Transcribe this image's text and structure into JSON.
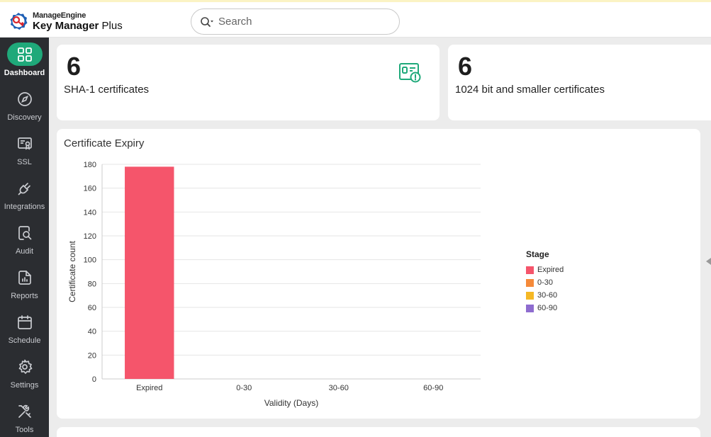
{
  "header": {
    "company": "ManageEngine",
    "product_bold": "Key Manager",
    "product_rest": " Plus",
    "search_placeholder": "Search"
  },
  "sidebar": {
    "items": [
      {
        "label": "Dashboard",
        "icon": "grid-icon",
        "active": true
      },
      {
        "label": "Discovery",
        "icon": "compass-icon"
      },
      {
        "label": "SSL",
        "icon": "certificate-icon"
      },
      {
        "label": "Integrations",
        "icon": "plug-icon"
      },
      {
        "label": "Audit",
        "icon": "audit-icon"
      },
      {
        "label": "Reports",
        "icon": "report-icon"
      },
      {
        "label": "Schedule",
        "icon": "calendar-icon"
      },
      {
        "label": "Settings",
        "icon": "gear-icon"
      },
      {
        "label": "Tools",
        "icon": "tools-icon"
      }
    ]
  },
  "stats": [
    {
      "value": "6",
      "label": "SHA-1 certificates",
      "icon": "certificate-warning-icon"
    },
    {
      "value": "6",
      "label": "1024 bit and smaller certificates"
    }
  ],
  "colors": {
    "accent": "#1fa97a",
    "expired": "#f5556b",
    "d0_30": "#f58a3a",
    "d30_60": "#f5b825",
    "d60_90": "#8e6ccf"
  },
  "expiry_card": {
    "title": "Certificate Expiry"
  },
  "chart_data": {
    "type": "bar",
    "title": "Certificate Expiry",
    "categories": [
      "Expired",
      "0-30",
      "30-60",
      "60-90"
    ],
    "values": [
      178,
      0,
      0,
      0
    ],
    "xlabel": "Validity (Days)",
    "ylabel": "Certificate count",
    "ylim": [
      0,
      180
    ],
    "yticks": [
      0,
      20,
      40,
      60,
      80,
      100,
      120,
      140,
      160,
      180
    ],
    "grid": true,
    "legend": {
      "title": "Stage",
      "position": "right",
      "entries": [
        {
          "label": "Expired",
          "color": "#f5556b"
        },
        {
          "label": "0-30",
          "color": "#f58a3a"
        },
        {
          "label": "30-60",
          "color": "#f5b825"
        },
        {
          "label": "60-90",
          "color": "#8e6ccf"
        }
      ]
    }
  }
}
